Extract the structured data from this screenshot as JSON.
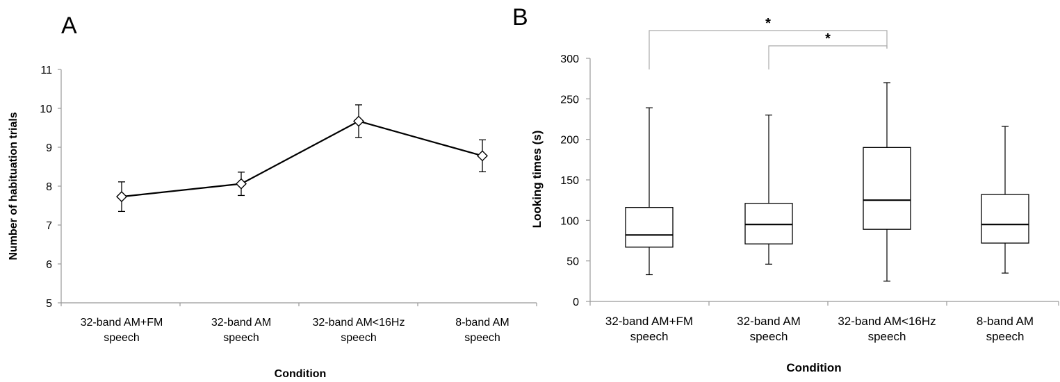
{
  "chart_data": [
    {
      "panel": "A",
      "type": "line",
      "categories": [
        [
          "32-band AM+FM",
          "speech"
        ],
        [
          "32-band AM",
          "speech"
        ],
        [
          "32-band AM<16Hz",
          "speech"
        ],
        [
          "8-band AM",
          "speech"
        ]
      ],
      "values": [
        7.73,
        8.06,
        9.67,
        8.78
      ],
      "error_low": [
        7.35,
        7.76,
        9.25,
        8.37
      ],
      "error_high": [
        8.11,
        8.36,
        10.09,
        9.19
      ],
      "marker": "diamond",
      "xlabel": "Condition",
      "ylabel": "Number of habituation trials",
      "ylim": [
        5,
        11
      ],
      "yticks": [
        5,
        6,
        7,
        8,
        9,
        10,
        11
      ],
      "grid": false
    },
    {
      "panel": "B",
      "type": "box",
      "categories": [
        [
          "32-band AM+FM",
          "speech"
        ],
        [
          "32-band AM",
          "speech"
        ],
        [
          "32-band AM<16Hz",
          "speech"
        ],
        [
          "8-band AM",
          "speech"
        ]
      ],
      "boxes": [
        {
          "min": 33,
          "q1": 67,
          "median": 82,
          "q3": 116,
          "max": 239
        },
        {
          "min": 46,
          "q1": 71,
          "median": 95,
          "q3": 121,
          "max": 230
        },
        {
          "min": 25,
          "q1": 89,
          "median": 125,
          "q3": 190,
          "max": 270
        },
        {
          "min": 35,
          "q1": 72,
          "median": 95,
          "q3": 132,
          "max": 216
        }
      ],
      "significance": [
        {
          "from": 0,
          "to": 2,
          "label": "*"
        },
        {
          "from": 1,
          "to": 2,
          "label": "*"
        }
      ],
      "xlabel": "Condition",
      "ylabel": "Looking times (s)",
      "ylim": [
        0,
        300
      ],
      "yticks": [
        0,
        50,
        100,
        150,
        200,
        250,
        300
      ],
      "grid": false
    }
  ]
}
